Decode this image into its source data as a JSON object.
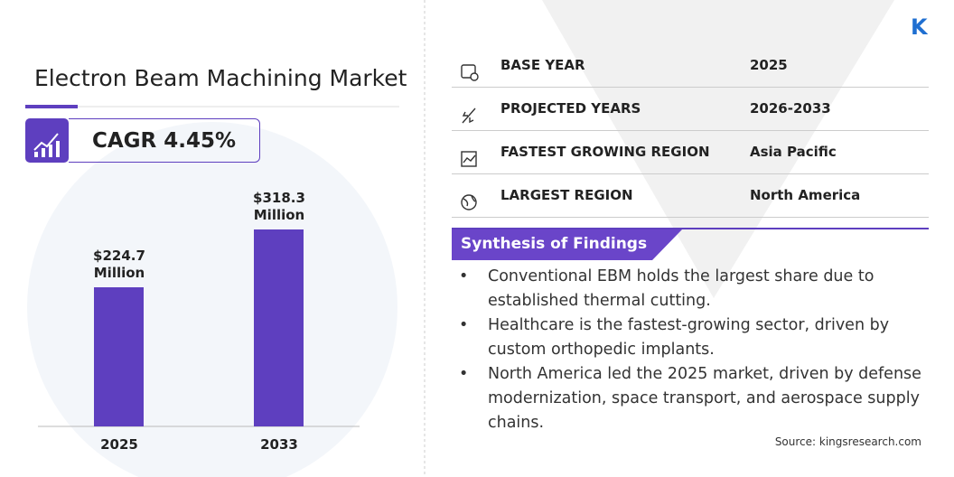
{
  "chart_data": {
    "type": "bar",
    "title": "Electron Beam Machining Market",
    "categories": [
      "2025",
      "2033"
    ],
    "values": [
      224.7,
      318.3
    ],
    "value_labels": [
      "$224.7 Million",
      "$318.3 Million"
    ],
    "color": "#5e3fbf"
  },
  "cagr": "CAGR 4.45%",
  "table": {
    "rows": [
      [
        "BASE YEAR",
        "2025"
      ],
      [
        "PROJECTED YEARS",
        "2026-2033"
      ],
      [
        "FASTEST GROWING REGION",
        "Asia Pacific"
      ],
      [
        "LARGEST REGION",
        "North America"
      ]
    ]
  },
  "synthesis": {
    "title": "Synthesis of Findings",
    "items": [
      "Conventional EBM holds the largest share due to established thermal cutting.",
      "Healthcare is the fastest-growing sector, driven by custom orthopedic implants.",
      "North America led the 2025 market, driven by defense modernization, space transport, and aerospace supply chains."
    ]
  },
  "source": "Source: kingsresearch.com"
}
